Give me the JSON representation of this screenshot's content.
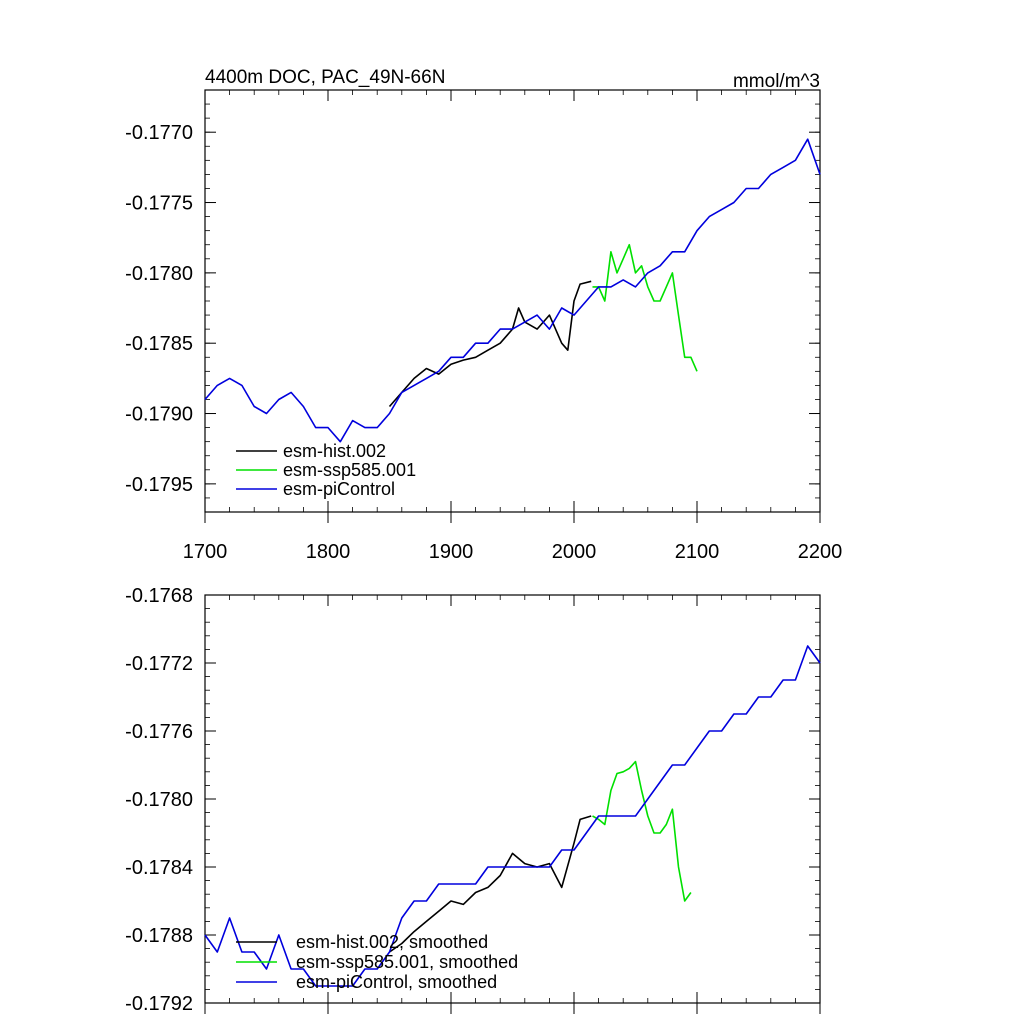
{
  "chart_data": [
    {
      "type": "line",
      "title": "4400m DOC, PAC_49N-66N",
      "units": "mmol/m^3",
      "xlim": [
        1700,
        2200
      ],
      "ylim": [
        -0.1797,
        -0.1767
      ],
      "xticks": [
        1700,
        1800,
        1900,
        2000,
        2100,
        2200
      ],
      "xtick_labels": [
        "1700",
        "1800",
        "1900",
        "2000",
        "2100",
        "2200"
      ],
      "yticks": [
        -0.1795,
        -0.179,
        -0.1785,
        -0.178,
        -0.1775,
        -0.177
      ],
      "ytick_labels": [
        "-0.1795",
        "-0.1790",
        "-0.1785",
        "-0.1780",
        "-0.1775",
        "-0.1770"
      ],
      "legend": [
        "esm-hist.002",
        "esm-ssp585.001",
        "esm-piControl"
      ],
      "series": [
        {
          "name": "esm-hist.002",
          "color": "#000000",
          "x": [
            1850,
            1860,
            1870,
            1880,
            1890,
            1900,
            1910,
            1920,
            1930,
            1940,
            1950,
            1955,
            1960,
            1970,
            1980,
            1990,
            1995,
            2000,
            2005,
            2014
          ],
          "y": [
            -0.17895,
            -0.17885,
            -0.17875,
            -0.17868,
            -0.17872,
            -0.17865,
            -0.17862,
            -0.1786,
            -0.17855,
            -0.1785,
            -0.1784,
            -0.17825,
            -0.17835,
            -0.1784,
            -0.1783,
            -0.1785,
            -0.17855,
            -0.1782,
            -0.17808,
            -0.17806
          ]
        },
        {
          "name": "esm-ssp585.001",
          "color": "#00e000",
          "x": [
            2015,
            2020,
            2025,
            2030,
            2035,
            2040,
            2045,
            2050,
            2055,
            2060,
            2065,
            2070,
            2075,
            2080,
            2085,
            2090,
            2095,
            2100
          ],
          "y": [
            -0.1781,
            -0.1781,
            -0.1782,
            -0.17785,
            -0.178,
            -0.1779,
            -0.1778,
            -0.178,
            -0.17795,
            -0.1781,
            -0.1782,
            -0.1782,
            -0.1781,
            -0.178,
            -0.1783,
            -0.1786,
            -0.1786,
            -0.1787
          ]
        },
        {
          "name": "esm-piControl",
          "color": "#0000dd",
          "x": [
            1700,
            1710,
            1720,
            1730,
            1740,
            1750,
            1760,
            1770,
            1780,
            1790,
            1800,
            1810,
            1820,
            1830,
            1840,
            1850,
            1860,
            1870,
            1880,
            1890,
            1900,
            1910,
            1920,
            1930,
            1940,
            1950,
            1960,
            1970,
            1980,
            1990,
            2000,
            2010,
            2020,
            2030,
            2040,
            2050,
            2060,
            2070,
            2080,
            2090,
            2100,
            2110,
            2120,
            2130,
            2140,
            2150,
            2160,
            2170,
            2180,
            2190,
            2200
          ],
          "y": [
            -0.1789,
            -0.1788,
            -0.17875,
            -0.1788,
            -0.17895,
            -0.179,
            -0.1789,
            -0.17885,
            -0.17895,
            -0.1791,
            -0.1791,
            -0.1792,
            -0.17905,
            -0.1791,
            -0.1791,
            -0.179,
            -0.17885,
            -0.1788,
            -0.17875,
            -0.1787,
            -0.1786,
            -0.1786,
            -0.1785,
            -0.1785,
            -0.1784,
            -0.1784,
            -0.17835,
            -0.1783,
            -0.1784,
            -0.17825,
            -0.1783,
            -0.1782,
            -0.1781,
            -0.1781,
            -0.17805,
            -0.1781,
            -0.178,
            -0.17795,
            -0.17785,
            -0.17785,
            -0.1777,
            -0.1776,
            -0.17755,
            -0.1775,
            -0.1774,
            -0.1774,
            -0.1773,
            -0.17725,
            -0.1772,
            -0.17705,
            -0.1773
          ]
        }
      ]
    },
    {
      "type": "line",
      "xlim": [
        1700,
        2200
      ],
      "ylim": [
        -0.1792,
        -0.1768
      ],
      "xticks": [
        1700,
        1800,
        1900,
        2000,
        2100,
        2200
      ],
      "yticks": [
        -0.1792,
        -0.1788,
        -0.1784,
        -0.178,
        -0.1776,
        -0.1772,
        -0.1768
      ],
      "ytick_labels": [
        "-0.1792",
        "-0.1788",
        "-0.1784",
        "-0.1780",
        "-0.1776",
        "-0.1772",
        "-0.1768"
      ],
      "legend": [
        "esm-hist.002, smoothed",
        "esm-ssp585.001, smoothed",
        "esm-piControl, smoothed"
      ],
      "series": [
        {
          "name": "esm-hist.002, smoothed",
          "color": "#000000",
          "x": [
            1850,
            1860,
            1870,
            1880,
            1890,
            1900,
            1910,
            1920,
            1930,
            1940,
            1950,
            1960,
            1970,
            1980,
            1990,
            2000,
            2005,
            2014
          ],
          "y": [
            -0.1789,
            -0.17885,
            -0.17878,
            -0.17872,
            -0.17866,
            -0.1786,
            -0.17862,
            -0.17855,
            -0.17852,
            -0.17845,
            -0.17832,
            -0.17838,
            -0.1784,
            -0.17838,
            -0.17852,
            -0.17826,
            -0.17812,
            -0.1781
          ]
        },
        {
          "name": "esm-ssp585.001, smoothed",
          "color": "#00e000",
          "x": [
            2015,
            2020,
            2025,
            2030,
            2035,
            2040,
            2045,
            2050,
            2055,
            2060,
            2065,
            2070,
            2075,
            2080,
            2085,
            2090,
            2095
          ],
          "y": [
            -0.1781,
            -0.17812,
            -0.17815,
            -0.17795,
            -0.17785,
            -0.17784,
            -0.17782,
            -0.17778,
            -0.17795,
            -0.1781,
            -0.1782,
            -0.1782,
            -0.17815,
            -0.17806,
            -0.1784,
            -0.1786,
            -0.17855
          ]
        },
        {
          "name": "esm-piControl, smoothed",
          "color": "#0000dd",
          "x": [
            1700,
            1710,
            1720,
            1730,
            1740,
            1750,
            1760,
            1770,
            1780,
            1790,
            1800,
            1810,
            1820,
            1830,
            1840,
            1850,
            1860,
            1870,
            1880,
            1890,
            1900,
            1910,
            1920,
            1930,
            1940,
            1950,
            1960,
            1970,
            1980,
            1990,
            2000,
            2010,
            2020,
            2030,
            2040,
            2050,
            2060,
            2070,
            2080,
            2090,
            2100,
            2110,
            2120,
            2130,
            2140,
            2150,
            2160,
            2170,
            2180,
            2190,
            2200
          ],
          "y": [
            -0.1788,
            -0.1789,
            -0.1787,
            -0.1789,
            -0.1789,
            -0.179,
            -0.1788,
            -0.179,
            -0.179,
            -0.1791,
            -0.1791,
            -0.1791,
            -0.1791,
            -0.179,
            -0.179,
            -0.1789,
            -0.1787,
            -0.1786,
            -0.1786,
            -0.1785,
            -0.1785,
            -0.1785,
            -0.1785,
            -0.1784,
            -0.1784,
            -0.1784,
            -0.1784,
            -0.1784,
            -0.1784,
            -0.1783,
            -0.1783,
            -0.1782,
            -0.1781,
            -0.1781,
            -0.1781,
            -0.1781,
            -0.178,
            -0.1779,
            -0.1778,
            -0.1778,
            -0.1777,
            -0.1776,
            -0.1776,
            -0.1775,
            -0.1775,
            -0.1774,
            -0.1774,
            -0.1773,
            -0.1773,
            -0.1771,
            -0.1772
          ]
        }
      ]
    }
  ]
}
